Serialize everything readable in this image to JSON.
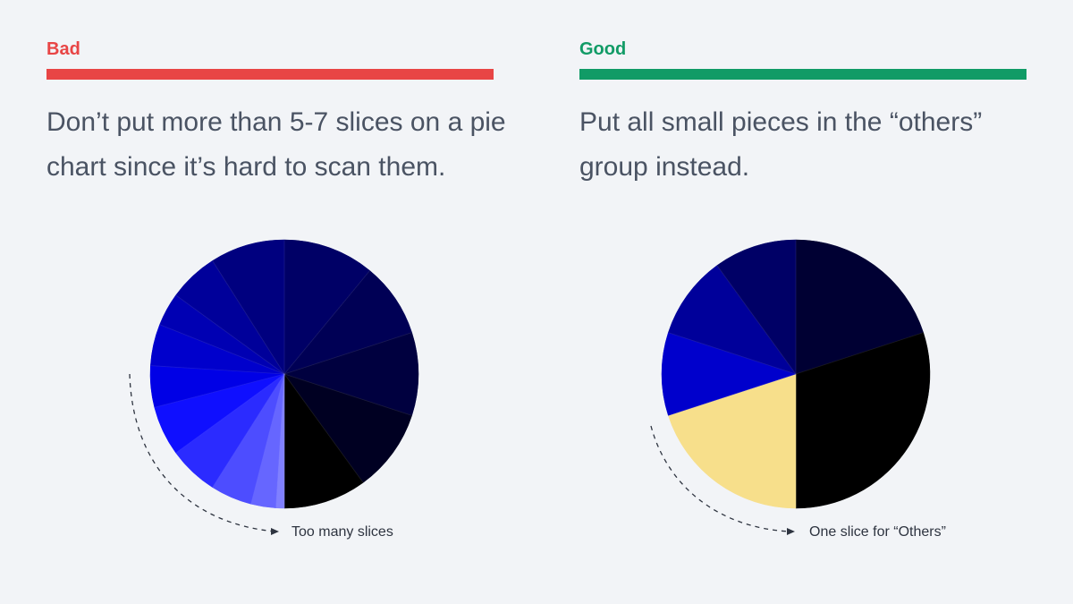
{
  "bad": {
    "label": "Bad",
    "color": "#e84545",
    "description": "Don’t put more than 5-7 slices on a pie chart since it’s hard to scan them.",
    "annotation": "Too many slices"
  },
  "good": {
    "label": "Good",
    "color": "#119b66",
    "description": "Put all small pieces in the “others” group instead.",
    "annotation": "One slice for “Others”"
  },
  "chart_data": [
    {
      "type": "pie",
      "title": "",
      "slices": [
        {
          "value": 11,
          "color": "#000066"
        },
        {
          "value": 9,
          "color": "#000055"
        },
        {
          "value": 10,
          "color": "#00003f"
        },
        {
          "value": 10,
          "color": "#000022"
        },
        {
          "value": 10,
          "color": "#000000"
        },
        {
          "value": 1,
          "color": "#8080ff"
        },
        {
          "value": 3,
          "color": "#6666ff"
        },
        {
          "value": 5,
          "color": "#4d4dff"
        },
        {
          "value": 6,
          "color": "#2b2bff"
        },
        {
          "value": 6,
          "color": "#0f0fff"
        },
        {
          "value": 5,
          "color": "#0000e6"
        },
        {
          "value": 5,
          "color": "#0000cc"
        },
        {
          "value": 4,
          "color": "#0000b3"
        },
        {
          "value": 6,
          "color": "#00009a"
        },
        {
          "value": 9,
          "color": "#00007f"
        }
      ]
    },
    {
      "type": "pie",
      "title": "",
      "slices": [
        {
          "value": 20,
          "color": "#000033"
        },
        {
          "value": 30,
          "color": "#000000"
        },
        {
          "value": 20,
          "color": "#f7df8b",
          "others": true
        },
        {
          "value": 10,
          "color": "#0000cc"
        },
        {
          "value": 10,
          "color": "#00009a"
        },
        {
          "value": 10,
          "color": "#000066"
        }
      ]
    }
  ]
}
